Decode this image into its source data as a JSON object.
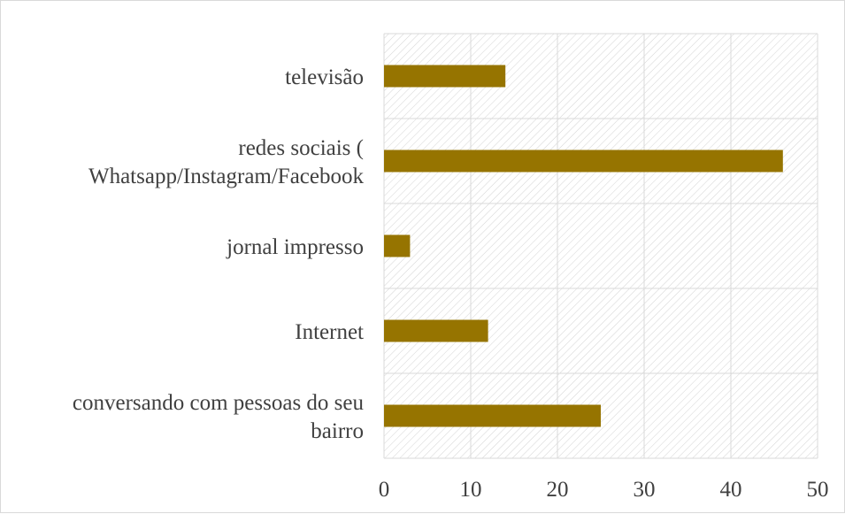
{
  "chart_data": {
    "type": "bar",
    "orientation": "horizontal",
    "title": "",
    "xlabel": "",
    "ylabel": "",
    "categories": [
      "televisão",
      "redes sociais ( Whatsapp/Instagram/Facebook",
      "jornal impresso",
      "Internet",
      "conversando com pessoas do seu bairro"
    ],
    "category_lines": [
      [
        "televisão"
      ],
      [
        "redes sociais (",
        "Whatsapp/Instagram/Facebook"
      ],
      [
        "jornal impresso"
      ],
      [
        "Internet"
      ],
      [
        "conversando com pessoas do seu",
        "bairro"
      ]
    ],
    "values": [
      14,
      46,
      3,
      12,
      25
    ],
    "xlim": [
      0,
      50
    ],
    "xticks": [
      0,
      10,
      20,
      30,
      40,
      50
    ],
    "grid": true,
    "legend": "none",
    "bar_color": "#967400",
    "background": "hatched"
  }
}
